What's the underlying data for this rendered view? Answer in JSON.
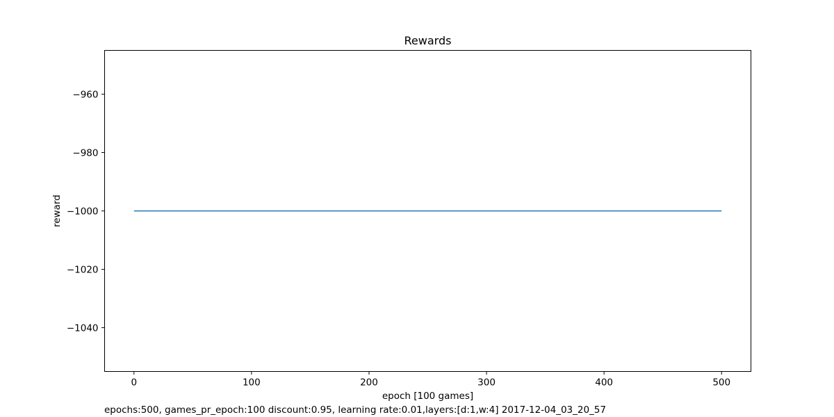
{
  "chart_data": {
    "type": "line",
    "title": "Rewards",
    "xlabel": "epoch [100 games]",
    "ylabel": "reward",
    "xlim": [
      -25,
      525
    ],
    "ylim": [
      -1055,
      -945
    ],
    "xticks": [
      0,
      100,
      200,
      300,
      400,
      500
    ],
    "yticks": [
      -960,
      -980,
      -1000,
      -1020,
      -1040
    ],
    "xtick_labels": [
      "0",
      "100",
      "200",
      "300",
      "400",
      "500"
    ],
    "ytick_labels": [
      "−960",
      "−980",
      "−1000",
      "−1020",
      "−1040"
    ],
    "grid": false,
    "series": [
      {
        "x": [
          0,
          100,
          200,
          300,
          400,
          500
        ],
        "y": [
          -1000,
          -1000,
          -1000,
          -1000,
          -1000,
          -1000
        ],
        "color": "#1f77b4"
      }
    ]
  },
  "caption": "epochs:500, games_pr_epoch:100 discount:0.95, learning rate:0.01,layers:[d:1,w:4] 2017-12-04_03_20_57"
}
